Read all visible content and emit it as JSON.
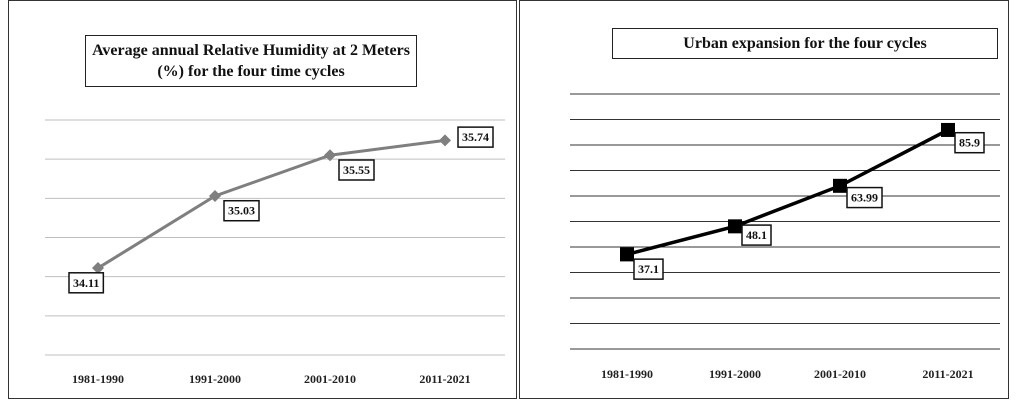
{
  "chart_data": [
    {
      "type": "line",
      "title": "Average annual  Relative Humidity at 2 Meters (%) for the four time cycles",
      "categories": [
        "1981-1990",
        "1991-2000",
        "2001-2010",
        "2011-2021"
      ],
      "series": [
        {
          "name": "Relative Humidity",
          "color": "#7f7f7f",
          "values": [
            34.11,
            35.03,
            35.55,
            35.74
          ]
        }
      ],
      "ylim": [
        33,
        36
      ],
      "yticks": [
        33,
        33.5,
        34,
        34.5,
        35,
        35.5,
        36
      ],
      "grid": true
    },
    {
      "type": "line",
      "title": "Urban expansion for the four cycles",
      "categories": [
        "1981-1990",
        "1991-2000",
        "2001-2010",
        "2011-2021"
      ],
      "series": [
        {
          "name": "Urban expansion",
          "color": "#000000",
          "values": [
            37.1,
            48.1,
            63.99,
            85.9
          ]
        }
      ],
      "ylim": [
        0,
        100
      ],
      "yticks": [
        0,
        10,
        20,
        30,
        40,
        50,
        60,
        70,
        80,
        90,
        100
      ],
      "grid": true
    }
  ]
}
